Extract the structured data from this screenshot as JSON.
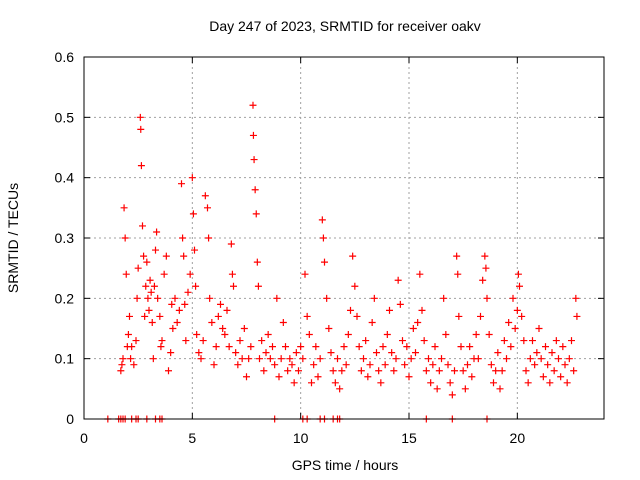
{
  "chart_data": {
    "type": "scatter",
    "title": "Day 247 of 2023, SRMTID for receiver oakv",
    "xlabel": "GPS time / hours",
    "ylabel": "SRMTID / TECUs",
    "xlim": [
      0,
      24
    ],
    "ylim": [
      0,
      0.6
    ],
    "xticks": [
      0,
      5,
      10,
      15,
      20
    ],
    "yticks": [
      0,
      0.1,
      0.2,
      0.3,
      0.4,
      0.5,
      0.6
    ],
    "xtick_labels": [
      "0",
      "5",
      "10",
      "15",
      "20"
    ],
    "ytick_labels": [
      "0",
      "0.1",
      "0.2",
      "0.3",
      "0.4",
      "0.5",
      "0.6"
    ],
    "grid": true,
    "marker": "+",
    "series": [
      {
        "name": "SRMTID",
        "color": "#ff0000",
        "points": [
          [
            1.7,
            0.08
          ],
          [
            1.75,
            0.09
          ],
          [
            1.8,
            0.1
          ],
          [
            1.85,
            0.35
          ],
          [
            1.9,
            0.3
          ],
          [
            1.95,
            0.24
          ],
          [
            2.0,
            0.12
          ],
          [
            2.05,
            0.14
          ],
          [
            2.1,
            0.17
          ],
          [
            2.15,
            0.1
          ],
          [
            2.2,
            0.12
          ],
          [
            2.3,
            0.09
          ],
          [
            2.4,
            0.13
          ],
          [
            2.45,
            0.2
          ],
          [
            2.5,
            0.25
          ],
          [
            2.6,
            0.5
          ],
          [
            2.62,
            0.48
          ],
          [
            2.65,
            0.42
          ],
          [
            2.7,
            0.32
          ],
          [
            2.75,
            0.27
          ],
          [
            2.8,
            0.17
          ],
          [
            2.85,
            0.22
          ],
          [
            2.9,
            0.26
          ],
          [
            2.95,
            0.2
          ],
          [
            3.0,
            0.18
          ],
          [
            3.05,
            0.23
          ],
          [
            3.1,
            0.21
          ],
          [
            3.15,
            0.16
          ],
          [
            3.2,
            0.1
          ],
          [
            3.25,
            0.22
          ],
          [
            3.3,
            0.28
          ],
          [
            3.35,
            0.31
          ],
          [
            3.4,
            0.2
          ],
          [
            3.5,
            0.17
          ],
          [
            3.55,
            0.12
          ],
          [
            3.6,
            0.13
          ],
          [
            3.7,
            0.24
          ],
          [
            3.8,
            0.27
          ],
          [
            3.9,
            0.08
          ],
          [
            4.0,
            0.11
          ],
          [
            4.05,
            0.19
          ],
          [
            4.1,
            0.15
          ],
          [
            4.2,
            0.2
          ],
          [
            4.3,
            0.16
          ],
          [
            4.4,
            0.18
          ],
          [
            4.5,
            0.39
          ],
          [
            4.55,
            0.3
          ],
          [
            4.6,
            0.27
          ],
          [
            4.65,
            0.19
          ],
          [
            4.7,
            0.13
          ],
          [
            4.8,
            0.21
          ],
          [
            4.9,
            0.24
          ],
          [
            5.0,
            0.4
          ],
          [
            5.05,
            0.34
          ],
          [
            5.1,
            0.28
          ],
          [
            5.15,
            0.22
          ],
          [
            5.2,
            0.14
          ],
          [
            5.3,
            0.11
          ],
          [
            5.4,
            0.1
          ],
          [
            5.5,
            0.13
          ],
          [
            5.6,
            0.37
          ],
          [
            5.7,
            0.35
          ],
          [
            5.75,
            0.3
          ],
          [
            5.8,
            0.2
          ],
          [
            5.9,
            0.16
          ],
          [
            6.0,
            0.09
          ],
          [
            6.1,
            0.12
          ],
          [
            6.2,
            0.17
          ],
          [
            6.3,
            0.19
          ],
          [
            6.4,
            0.15
          ],
          [
            6.5,
            0.14
          ],
          [
            6.6,
            0.18
          ],
          [
            6.7,
            0.12
          ],
          [
            6.8,
            0.29
          ],
          [
            6.85,
            0.24
          ],
          [
            6.9,
            0.22
          ],
          [
            7.0,
            0.11
          ],
          [
            7.1,
            0.09
          ],
          [
            7.2,
            0.13
          ],
          [
            7.3,
            0.1
          ],
          [
            7.4,
            0.15
          ],
          [
            7.5,
            0.07
          ],
          [
            7.6,
            0.1
          ],
          [
            7.7,
            0.12
          ],
          [
            7.8,
            0.52
          ],
          [
            7.82,
            0.47
          ],
          [
            7.85,
            0.43
          ],
          [
            7.9,
            0.38
          ],
          [
            7.95,
            0.34
          ],
          [
            8.0,
            0.26
          ],
          [
            8.05,
            0.22
          ],
          [
            8.1,
            0.1
          ],
          [
            8.2,
            0.13
          ],
          [
            8.3,
            0.08
          ],
          [
            8.4,
            0.11
          ],
          [
            8.5,
            0.14
          ],
          [
            8.6,
            0.1
          ],
          [
            8.7,
            0.12
          ],
          [
            8.8,
            0.09
          ],
          [
            8.9,
            0.2
          ],
          [
            9.0,
            0.07
          ],
          [
            9.1,
            0.1
          ],
          [
            9.2,
            0.16
          ],
          [
            9.3,
            0.12
          ],
          [
            9.4,
            0.08
          ],
          [
            9.5,
            0.1
          ],
          [
            9.6,
            0.09
          ],
          [
            9.7,
            0.06
          ],
          [
            9.8,
            0.11
          ],
          [
            9.9,
            0.08
          ],
          [
            10.0,
            0.12
          ],
          [
            10.1,
            0.1
          ],
          [
            10.2,
            0.24
          ],
          [
            10.3,
            0.17
          ],
          [
            10.4,
            0.14
          ],
          [
            10.5,
            0.06
          ],
          [
            10.6,
            0.09
          ],
          [
            10.7,
            0.12
          ],
          [
            10.8,
            0.07
          ],
          [
            10.9,
            0.1
          ],
          [
            11.0,
            0.33
          ],
          [
            11.05,
            0.3
          ],
          [
            11.1,
            0.26
          ],
          [
            11.2,
            0.2
          ],
          [
            11.3,
            0.15
          ],
          [
            11.4,
            0.11
          ],
          [
            11.5,
            0.08
          ],
          [
            11.6,
            0.06
          ],
          [
            11.7,
            0.1
          ],
          [
            11.8,
            0.05
          ],
          [
            11.9,
            0.08
          ],
          [
            12.0,
            0.12
          ],
          [
            12.1,
            0.09
          ],
          [
            12.2,
            0.14
          ],
          [
            12.3,
            0.18
          ],
          [
            12.4,
            0.27
          ],
          [
            12.5,
            0.22
          ],
          [
            12.6,
            0.17
          ],
          [
            12.7,
            0.12
          ],
          [
            12.8,
            0.08
          ],
          [
            12.9,
            0.1
          ],
          [
            13.0,
            0.13
          ],
          [
            13.1,
            0.07
          ],
          [
            13.2,
            0.09
          ],
          [
            13.3,
            0.16
          ],
          [
            13.4,
            0.2
          ],
          [
            13.5,
            0.11
          ],
          [
            13.6,
            0.08
          ],
          [
            13.7,
            0.06
          ],
          [
            13.8,
            0.12
          ],
          [
            13.9,
            0.09
          ],
          [
            14.0,
            0.14
          ],
          [
            14.1,
            0.18
          ],
          [
            14.2,
            0.11
          ],
          [
            14.3,
            0.08
          ],
          [
            14.4,
            0.1
          ],
          [
            14.5,
            0.23
          ],
          [
            14.6,
            0.19
          ],
          [
            14.7,
            0.13
          ],
          [
            14.8,
            0.09
          ],
          [
            14.9,
            0.12
          ],
          [
            15.0,
            0.07
          ],
          [
            15.1,
            0.1
          ],
          [
            15.2,
            0.15
          ],
          [
            15.3,
            0.11
          ],
          [
            15.4,
            0.16
          ],
          [
            15.5,
            0.24
          ],
          [
            15.6,
            0.18
          ],
          [
            15.7,
            0.13
          ],
          [
            15.8,
            0.08
          ],
          [
            15.9,
            0.1
          ],
          [
            16.0,
            0.06
          ],
          [
            16.1,
            0.09
          ],
          [
            16.2,
            0.12
          ],
          [
            16.3,
            0.05
          ],
          [
            16.4,
            0.08
          ],
          [
            16.5,
            0.1
          ],
          [
            16.6,
            0.2
          ],
          [
            16.7,
            0.14
          ],
          [
            16.8,
            0.09
          ],
          [
            16.9,
            0.06
          ],
          [
            17.0,
            0.04
          ],
          [
            17.1,
            0.08
          ],
          [
            17.2,
            0.27
          ],
          [
            17.25,
            0.24
          ],
          [
            17.3,
            0.17
          ],
          [
            17.4,
            0.12
          ],
          [
            17.5,
            0.08
          ],
          [
            17.6,
            0.05
          ],
          [
            17.7,
            0.09
          ],
          [
            17.8,
            0.12
          ],
          [
            17.9,
            0.07
          ],
          [
            18.0,
            0.1
          ],
          [
            18.1,
            0.14
          ],
          [
            18.2,
            0.1
          ],
          [
            18.3,
            0.17
          ],
          [
            18.4,
            0.23
          ],
          [
            18.5,
            0.27
          ],
          [
            18.55,
            0.25
          ],
          [
            18.6,
            0.2
          ],
          [
            18.7,
            0.14
          ],
          [
            18.8,
            0.09
          ],
          [
            18.9,
            0.06
          ],
          [
            19.0,
            0.08
          ],
          [
            19.1,
            0.11
          ],
          [
            19.2,
            0.05
          ],
          [
            19.3,
            0.08
          ],
          [
            19.4,
            0.13
          ],
          [
            19.5,
            0.1
          ],
          [
            19.6,
            0.16
          ],
          [
            19.7,
            0.12
          ],
          [
            19.8,
            0.2
          ],
          [
            19.9,
            0.15
          ],
          [
            20.0,
            0.18
          ],
          [
            20.05,
            0.24
          ],
          [
            20.1,
            0.22
          ],
          [
            20.2,
            0.17
          ],
          [
            20.3,
            0.13
          ],
          [
            20.4,
            0.08
          ],
          [
            20.5,
            0.06
          ],
          [
            20.6,
            0.1
          ],
          [
            20.7,
            0.13
          ],
          [
            20.8,
            0.09
          ],
          [
            20.9,
            0.11
          ],
          [
            21.0,
            0.15
          ],
          [
            21.1,
            0.1
          ],
          [
            21.2,
            0.07
          ],
          [
            21.3,
            0.12
          ],
          [
            21.4,
            0.09
          ],
          [
            21.5,
            0.06
          ],
          [
            21.6,
            0.11
          ],
          [
            21.7,
            0.08
          ],
          [
            21.8,
            0.13
          ],
          [
            21.9,
            0.1
          ],
          [
            22.0,
            0.07
          ],
          [
            22.1,
            0.12
          ],
          [
            22.2,
            0.09
          ],
          [
            22.3,
            0.06
          ],
          [
            22.4,
            0.1
          ],
          [
            22.5,
            0.13
          ],
          [
            22.6,
            0.08
          ],
          [
            22.7,
            0.2
          ],
          [
            22.75,
            0.17
          ],
          [
            1.1,
            0.0
          ],
          [
            1.6,
            0.0
          ],
          [
            1.7,
            0.0
          ],
          [
            1.8,
            0.0
          ],
          [
            1.9,
            0.0
          ],
          [
            2.2,
            0.0
          ],
          [
            2.4,
            0.0
          ],
          [
            2.5,
            0.0
          ],
          [
            2.9,
            0.0
          ],
          [
            3.3,
            0.0
          ],
          [
            3.5,
            0.0
          ],
          [
            3.6,
            0.0
          ],
          [
            8.8,
            0.0
          ],
          [
            10.1,
            0.0
          ],
          [
            10.3,
            0.0
          ],
          [
            10.9,
            0.0
          ],
          [
            11.1,
            0.0
          ],
          [
            11.5,
            0.0
          ],
          [
            11.7,
            0.0
          ],
          [
            11.8,
            0.0
          ],
          [
            15.8,
            0.0
          ],
          [
            17.0,
            0.0
          ],
          [
            18.6,
            0.0
          ]
        ]
      }
    ]
  }
}
